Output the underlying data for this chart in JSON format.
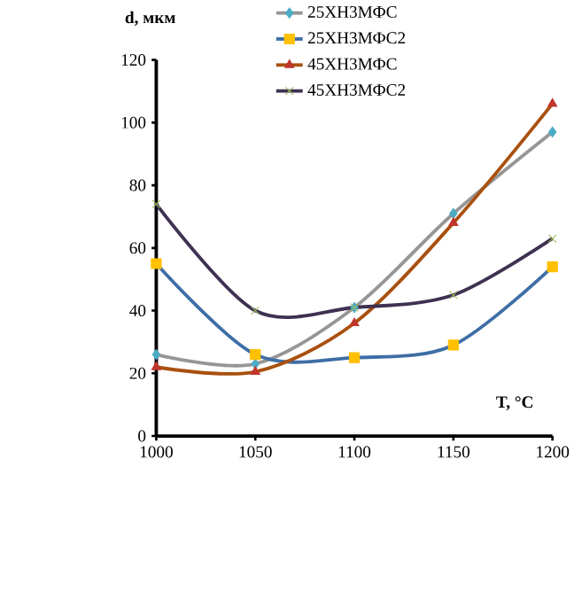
{
  "chart_data": {
    "type": "line",
    "xlabel": "T, °C",
    "ylabel": "d, мкм",
    "x": [
      1000,
      1050,
      1100,
      1150,
      1200
    ],
    "series": [
      {
        "name": "25ХН3МФС",
        "color": "#969696",
        "colors": [
          "#4bacc6",
          "#4bacc6",
          "#4bacc6",
          "#4bacc6",
          "#4bacc6"
        ],
        "marker": "diamond",
        "values": [
          26,
          23,
          41,
          71,
          97
        ]
      },
      {
        "name": "25ХН3МФС2",
        "color": "#3e6ea6",
        "colors": [
          "#ffc000",
          "#ffc000",
          "#ffc000",
          "#ffc000",
          "#ffc000"
        ],
        "marker": "square",
        "values": [
          55,
          26,
          25,
          29,
          54
        ]
      },
      {
        "name": "45ХН3МФС",
        "color": "#a9500f",
        "colors": [
          "#c0362c",
          "#c0362c",
          "#c0362c",
          "#c0362c",
          "#c0362c"
        ],
        "marker": "triangle",
        "values": [
          22,
          20.5,
          36,
          68,
          106
        ]
      },
      {
        "name": "45ХН3МФС2",
        "color": "#3f3151",
        "colors": [
          "#9bbb59",
          "#9bbb59",
          "#9bbb59",
          "#9bbb59",
          "#9bbb59"
        ],
        "marker": "cross",
        "values": [
          74,
          40,
          41,
          45,
          63
        ]
      }
    ],
    "xlim": [
      1000,
      1200
    ],
    "ylim": [
      0,
      120
    ],
    "xticks": [
      1000,
      1050,
      1100,
      1150,
      1200
    ],
    "yticks": [
      0,
      20,
      40,
      60,
      80,
      100,
      120
    ],
    "line_style": "solid",
    "grid": false,
    "legend": "top"
  }
}
